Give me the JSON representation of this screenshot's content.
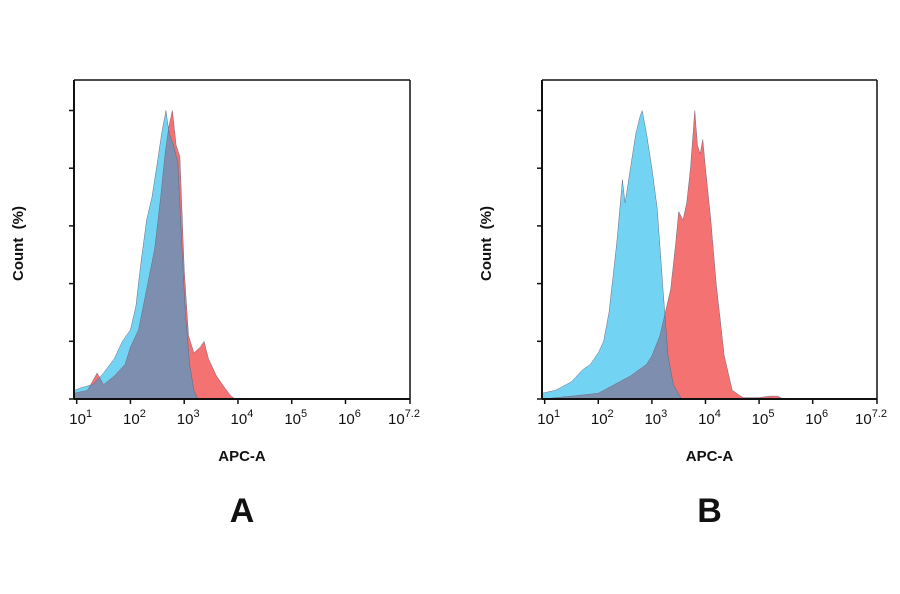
{
  "chart_data": [
    {
      "type": "area",
      "panel_label": "A",
      "xlabel": "APC-A",
      "ylabel": "Count  (%)",
      "x_scale": "log10",
      "xlim_log10": [
        0.95,
        7.2
      ],
      "ylim": [
        0,
        110
      ],
      "x_ticks": [
        {
          "base": "10",
          "exp": "1",
          "v": 1
        },
        {
          "base": "10",
          "exp": "2",
          "v": 2
        },
        {
          "base": "10",
          "exp": "3",
          "v": 3
        },
        {
          "base": "10",
          "exp": "4",
          "v": 4
        },
        {
          "base": "10",
          "exp": "5",
          "v": 5
        },
        {
          "base": "10",
          "exp": "6",
          "v": 6
        },
        {
          "base": "10",
          "exp": "7.2",
          "v": 7.2
        }
      ],
      "y_ticks": [
        "0",
        "20",
        "40",
        "60",
        "80",
        "100"
      ],
      "grid": false,
      "series": [
        {
          "color": "#f47272",
          "x_log10": [
            0.95,
            1.2,
            1.38,
            1.5,
            1.7,
            1.9,
            2.0,
            2.15,
            2.3,
            2.45,
            2.55,
            2.65,
            2.72,
            2.78,
            2.85,
            2.92,
            3.0,
            3.08,
            3.18,
            3.3,
            3.37,
            3.45,
            3.6,
            3.75,
            3.87,
            3.95
          ],
          "y": [
            2,
            3,
            9,
            5,
            8,
            12,
            18,
            24,
            38,
            52,
            68,
            86,
            95,
            100,
            88,
            84,
            45,
            22,
            16,
            18,
            20,
            14,
            8,
            4,
            1,
            0
          ]
        },
        {
          "color": "#72d3f3",
          "x_log10": [
            0.95,
            1.1,
            1.3,
            1.5,
            1.7,
            1.85,
            2.0,
            2.1,
            2.2,
            2.3,
            2.4,
            2.5,
            2.58,
            2.66,
            2.72,
            2.8,
            2.88,
            2.95,
            3.02,
            3.1,
            3.18,
            3.25
          ],
          "y": [
            3,
            4,
            5,
            9,
            14,
            20,
            24,
            32,
            48,
            62,
            70,
            82,
            92,
            100,
            92,
            88,
            82,
            55,
            30,
            12,
            3,
            0
          ]
        }
      ],
      "overlap_color": "#7e8eae"
    },
    {
      "type": "area",
      "panel_label": "B",
      "xlabel": "APC-A",
      "ylabel": "Count  (%)",
      "x_scale": "log10",
      "xlim_log10": [
        0.95,
        7.2
      ],
      "ylim": [
        0,
        110
      ],
      "x_ticks": [
        {
          "base": "10",
          "exp": "1",
          "v": 1
        },
        {
          "base": "10",
          "exp": "2",
          "v": 2
        },
        {
          "base": "10",
          "exp": "3",
          "v": 3
        },
        {
          "base": "10",
          "exp": "4",
          "v": 4
        },
        {
          "base": "10",
          "exp": "5",
          "v": 5
        },
        {
          "base": "10",
          "exp": "6",
          "v": 6
        },
        {
          "base": "10",
          "exp": "7.2",
          "v": 7.2
        }
      ],
      "y_ticks": [
        "0",
        "20",
        "40",
        "60",
        "80",
        "100"
      ],
      "grid": false,
      "series": [
        {
          "color": "#f47272",
          "x_log10": [
            0.95,
            1.5,
            2.0,
            2.3,
            2.6,
            2.9,
            3.0,
            3.15,
            3.25,
            3.35,
            3.45,
            3.5,
            3.58,
            3.65,
            3.72,
            3.8,
            3.85,
            3.9,
            3.95,
            4.0,
            4.1,
            4.2,
            4.35,
            4.5,
            4.7,
            5.0,
            5.2,
            5.35,
            5.45
          ],
          "y": [
            0,
            1,
            2,
            5,
            8,
            12,
            15,
            22,
            30,
            38,
            55,
            65,
            62,
            68,
            80,
            100,
            88,
            85,
            90,
            80,
            62,
            40,
            15,
            3,
            0.5,
            0.5,
            1,
            1,
            0
          ]
        },
        {
          "color": "#72d3f3",
          "x_log10": [
            0.95,
            1.2,
            1.5,
            1.7,
            1.85,
            2.0,
            2.1,
            2.2,
            2.35,
            2.45,
            2.5,
            2.6,
            2.7,
            2.78,
            2.82,
            2.9,
            3.0,
            3.1,
            3.2,
            3.3,
            3.4,
            3.55
          ],
          "y": [
            2,
            3,
            6,
            10,
            12,
            16,
            20,
            30,
            55,
            76,
            68,
            80,
            92,
            98,
            100,
            92,
            80,
            66,
            40,
            15,
            5,
            0
          ]
        }
      ],
      "overlap_color": "#7e8eae"
    }
  ]
}
